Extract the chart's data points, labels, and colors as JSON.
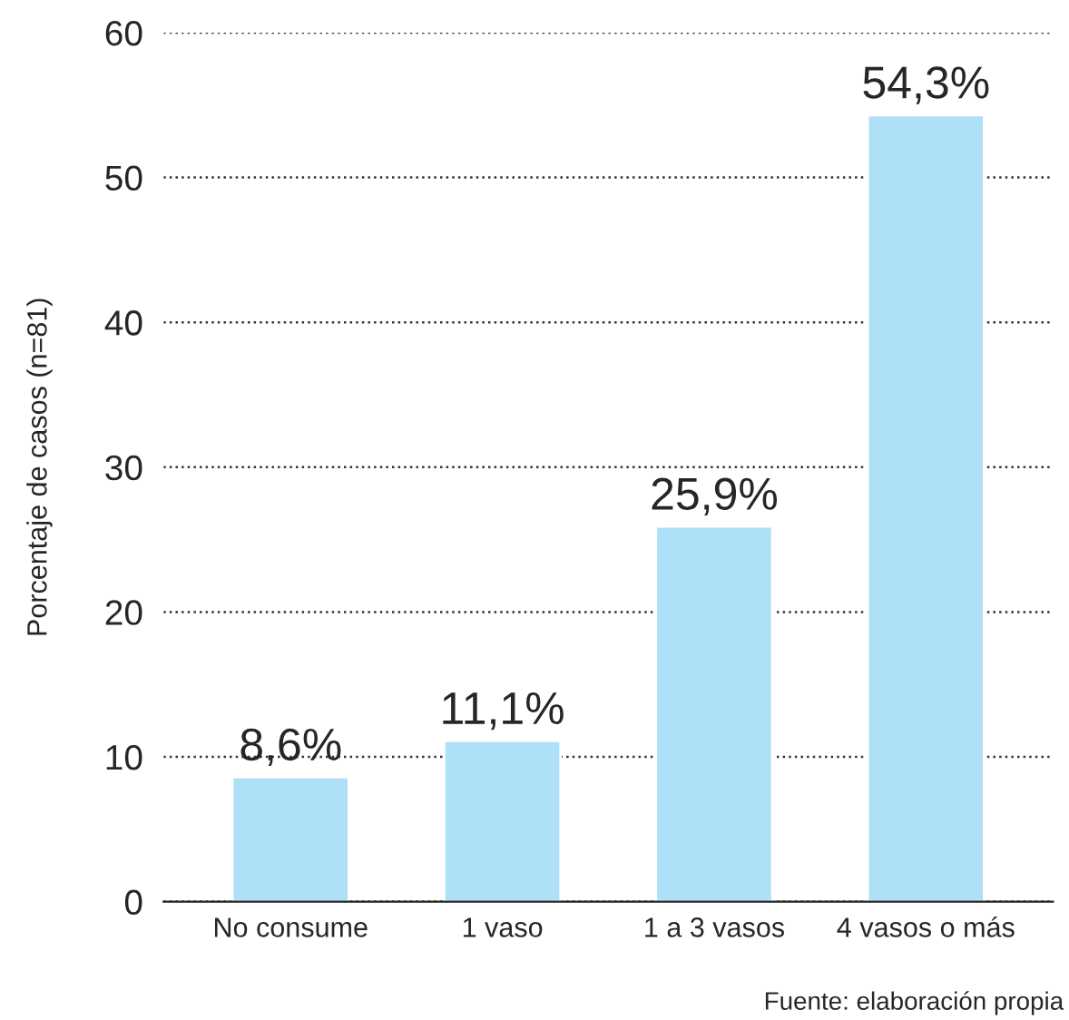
{
  "chart_data": {
    "type": "bar",
    "ylabel": "Porcentaje de casos (n=81)",
    "categories": [
      "No consume",
      "1 vaso",
      "1 a 3 vasos",
      "4 vasos o más"
    ],
    "values": [
      8.6,
      11.1,
      25.9,
      54.3
    ],
    "value_labels": [
      "8,6%",
      "11,1%",
      "25,9%",
      "54,3%"
    ],
    "color": "#aee0f7",
    "ylim": [
      0,
      60
    ],
    "yticks": [
      0,
      10,
      20,
      30,
      40,
      50,
      60
    ],
    "grid": "y",
    "line_style": "dotted",
    "annotations": [
      "Fuente: elaboración propia"
    ]
  }
}
